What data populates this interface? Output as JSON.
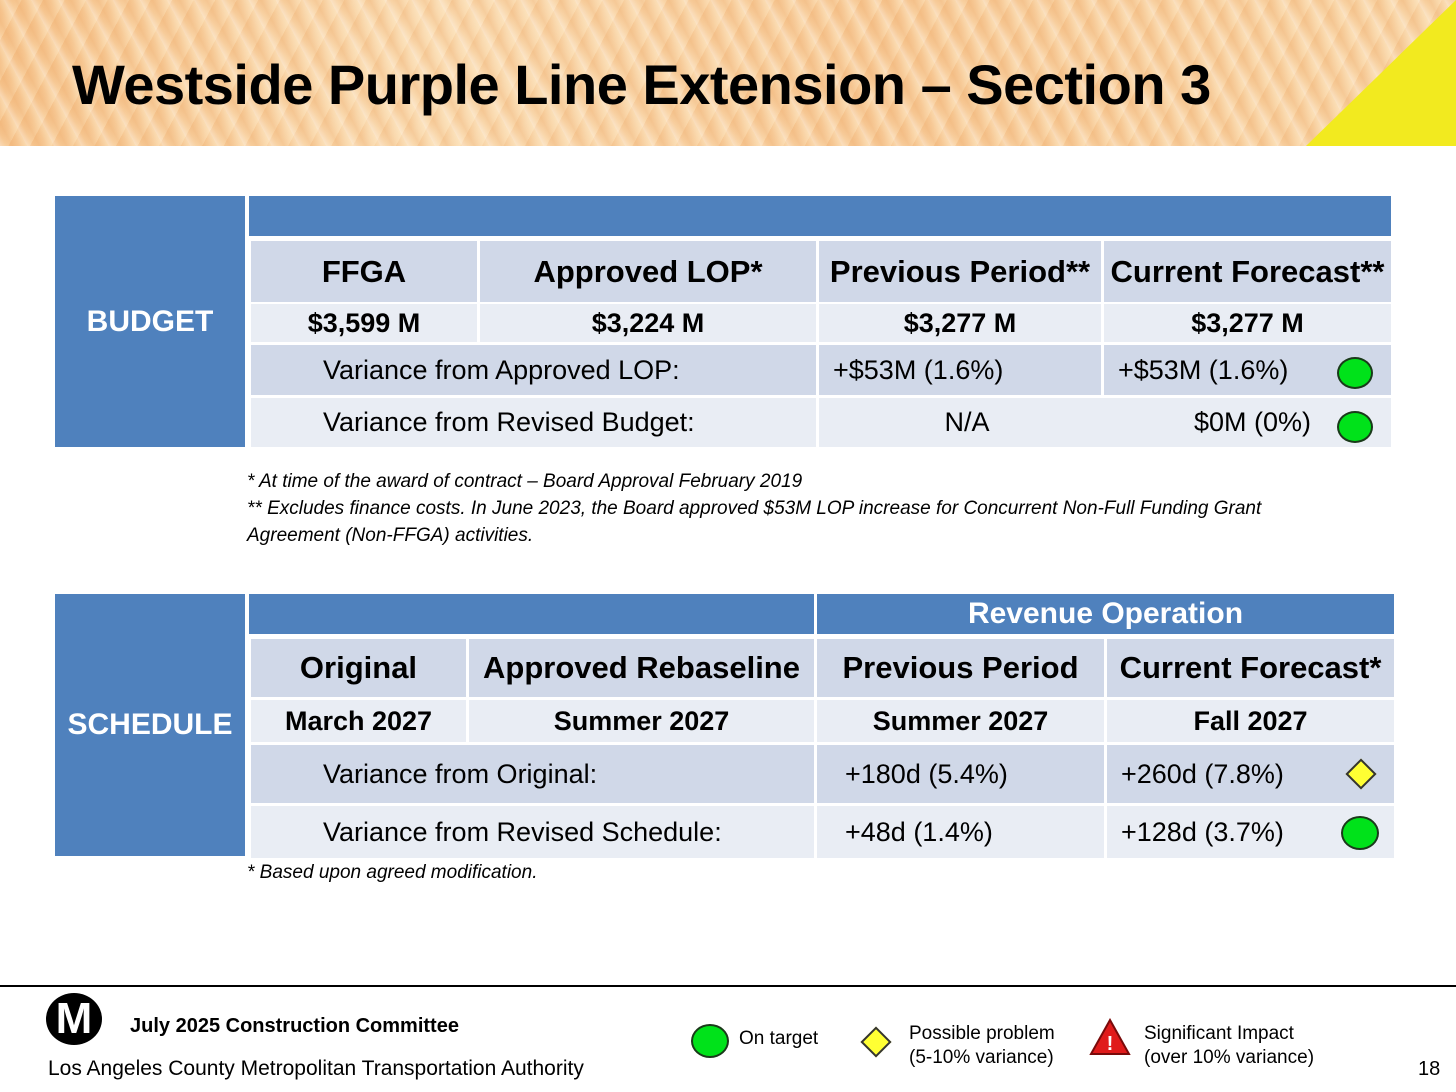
{
  "title": "Westside Purple Line Extension – Section 3",
  "budget": {
    "label": "BUDGET",
    "headers": [
      "FFGA",
      "Approved LOP*",
      "Previous Period**",
      "Current Forecast**"
    ],
    "values": [
      "$3,599 M",
      "$3,224 M",
      "$3,277 M",
      "$3,277 M"
    ],
    "variance_lop": {
      "label": "Variance from Approved LOP:",
      "previous": "+$53M (1.6%)",
      "current": "+$53M (1.6%)",
      "status": "on-target"
    },
    "variance_revised": {
      "label": "Variance from Revised Budget:",
      "previous": "N/A",
      "current": "$0M (0%)",
      "status": "on-target"
    },
    "notes": [
      "* At time of the award of contract – Board Approval February 2019",
      "** Excludes finance costs.  In June 2023, the Board approved $53M LOP increase for Concurrent Non-Full Funding Grant",
      "Agreement (Non-FFGA) activities."
    ]
  },
  "schedule": {
    "label": "SCHEDULE",
    "group_header": "Revenue Operation",
    "headers": [
      "Original",
      "Approved Rebaseline",
      "Previous Period",
      "Current Forecast*"
    ],
    "values": [
      "March 2027",
      "Summer 2027",
      "Summer 2027",
      "Fall 2027"
    ],
    "variance_original": {
      "label": "Variance from Original:",
      "previous": "+180d (5.4%)",
      "current": "+260d (7.8%)",
      "status": "possible-problem"
    },
    "variance_revised": {
      "label": "Variance from Revised Schedule:",
      "previous": "+48d (1.4%)",
      "current": "+128d (3.7%)",
      "status": "on-target"
    },
    "note": "* Based upon agreed modification."
  },
  "footer": {
    "logo": "M",
    "committee": "July 2025 Construction Committee",
    "agency": "Los Angeles County Metropolitan Transportation Authority",
    "page": "18",
    "legend": [
      {
        "icon": "green-circle-icon",
        "line1": "On target",
        "line2": ""
      },
      {
        "icon": "yellow-diamond-icon",
        "line1": "Possible problem",
        "line2": "(5-10% variance)"
      },
      {
        "icon": "red-triangle-icon",
        "symbol": "!",
        "line1": "Significant Impact",
        "line2": "(over 10% variance)"
      }
    ]
  },
  "colors": {
    "band": "#4f81bd",
    "header_cell": "#d0d8e8",
    "light_cell": "#e9edf4",
    "on_target": "#00e21a",
    "possible_problem": "#ffff33",
    "significant": "#e01b1b"
  }
}
